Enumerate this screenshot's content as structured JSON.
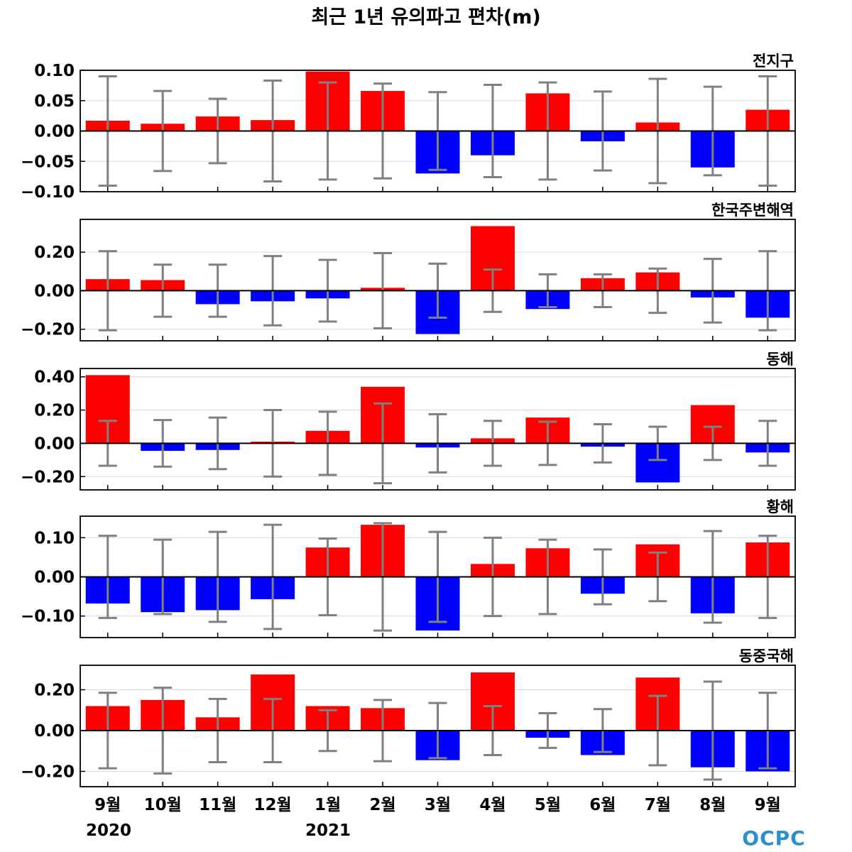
{
  "title": "최근 1년 유의파고 편차(m)",
  "year_labels": [
    "2020",
    "2021"
  ],
  "logo_text": "OCPC",
  "colors": {
    "positive": "#ff0000",
    "negative": "#0000ff",
    "errorbar": "#808080",
    "grid": "#d9d9d9"
  },
  "chart_data": [
    {
      "type": "bar",
      "region": "전지구",
      "categories": [
        "9월",
        "10월",
        "11월",
        "12월",
        "1월",
        "2월",
        "3월",
        "4월",
        "5월",
        "6월",
        "7월",
        "8월",
        "9월"
      ],
      "values": [
        0.017,
        0.012,
        0.024,
        0.018,
        0.098,
        0.066,
        -0.07,
        -0.04,
        0.062,
        -0.017,
        0.014,
        -0.06,
        0.035
      ],
      "error": [
        0.09,
        0.066,
        0.053,
        0.083,
        0.08,
        0.078,
        0.064,
        0.076,
        0.08,
        0.065,
        0.086,
        0.073,
        0.09
      ],
      "ylim": [
        -0.1,
        0.1
      ],
      "yticks": [
        0.1,
        0.05,
        0.0,
        -0.05,
        -0.1
      ],
      "ytick_labels": [
        "0.10",
        "0.05",
        "0.00",
        "−0.05",
        "−0.10"
      ]
    },
    {
      "type": "bar",
      "region": "한국주변해역",
      "categories": [
        "9월",
        "10월",
        "11월",
        "12월",
        "1월",
        "2월",
        "3월",
        "4월",
        "5월",
        "6월",
        "7월",
        "8월",
        "9월"
      ],
      "values": [
        0.06,
        0.055,
        -0.07,
        -0.055,
        -0.04,
        0.015,
        -0.225,
        0.335,
        -0.095,
        0.065,
        0.095,
        -0.035,
        -0.14
      ],
      "error": [
        0.205,
        0.135,
        0.135,
        0.18,
        0.16,
        0.195,
        0.14,
        0.11,
        0.085,
        0.085,
        0.115,
        0.165,
        0.205
      ],
      "ylim": [
        -0.26,
        0.37
      ],
      "yticks": [
        0.2,
        0.0,
        -0.2
      ],
      "ytick_labels": [
        "0.20",
        "0.00",
        "−0.20"
      ]
    },
    {
      "type": "bar",
      "region": "동해",
      "categories": [
        "9월",
        "10월",
        "11월",
        "12월",
        "1월",
        "2월",
        "3월",
        "4월",
        "5월",
        "6월",
        "7월",
        "8월",
        "9월"
      ],
      "values": [
        0.41,
        -0.045,
        -0.04,
        0.01,
        0.075,
        0.34,
        -0.025,
        0.03,
        0.155,
        -0.02,
        -0.235,
        0.23,
        -0.055
      ],
      "error": [
        0.135,
        0.14,
        0.155,
        0.2,
        0.19,
        0.24,
        0.175,
        0.135,
        0.13,
        0.115,
        0.1,
        0.1,
        0.135
      ],
      "ylim": [
        -0.28,
        0.45
      ],
      "yticks": [
        0.4,
        0.2,
        0.0,
        -0.2
      ],
      "ytick_labels": [
        "0.40",
        "0.20",
        "0.00",
        "−0.20"
      ]
    },
    {
      "type": "bar",
      "region": "황해",
      "categories": [
        "9월",
        "10월",
        "11월",
        "12월",
        "1월",
        "2월",
        "3월",
        "4월",
        "5월",
        "6월",
        "7월",
        "8월",
        "9월"
      ],
      "values": [
        -0.068,
        -0.09,
        -0.085,
        -0.057,
        0.075,
        0.133,
        -0.137,
        0.033,
        0.073,
        -0.043,
        0.083,
        -0.093,
        0.088
      ],
      "error": [
        0.105,
        0.095,
        0.115,
        0.133,
        0.098,
        0.137,
        0.115,
        0.1,
        0.095,
        0.07,
        0.062,
        0.117,
        0.105
      ],
      "ylim": [
        -0.155,
        0.155
      ],
      "yticks": [
        0.1,
        0.0,
        -0.1
      ],
      "ytick_labels": [
        "0.10",
        "0.00",
        "−0.10"
      ]
    },
    {
      "type": "bar",
      "region": "동중국해",
      "categories": [
        "9월",
        "10월",
        "11월",
        "12월",
        "1월",
        "2월",
        "3월",
        "4월",
        "5월",
        "6월",
        "7월",
        "8월",
        "9월"
      ],
      "values": [
        0.12,
        0.15,
        0.065,
        0.275,
        0.12,
        0.11,
        -0.145,
        0.285,
        -0.035,
        -0.12,
        0.26,
        -0.18,
        -0.2
      ],
      "error": [
        0.185,
        0.21,
        0.155,
        0.155,
        0.1,
        0.15,
        0.135,
        0.12,
        0.085,
        0.105,
        0.17,
        0.24,
        0.185
      ],
      "ylim": [
        -0.275,
        0.32
      ],
      "yticks": [
        0.2,
        0.0,
        -0.2
      ],
      "ytick_labels": [
        "0.20",
        "0.00",
        "−0.20"
      ]
    }
  ]
}
